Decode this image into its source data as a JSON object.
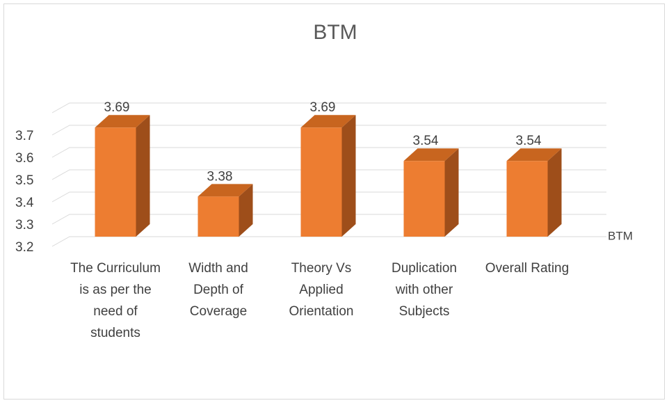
{
  "chart_data": {
    "type": "bar3d",
    "title": "BTM",
    "categories": [
      "The Curriculum is as per the need of students",
      "Width and Depth of Coverage",
      "Theory Vs Applied Orientation",
      "Duplication with other Subjects",
      "Overall Rating"
    ],
    "series": [
      {
        "name": "BTM",
        "color": "#ED7D31",
        "values": [
          3.69,
          3.38,
          3.69,
          3.54,
          3.54
        ]
      }
    ],
    "ylim": [
      3.2,
      3.8
    ],
    "yticks": [
      3.2,
      3.3,
      3.4,
      3.5,
      3.6,
      3.7
    ],
    "grid": true,
    "legend": "right"
  }
}
